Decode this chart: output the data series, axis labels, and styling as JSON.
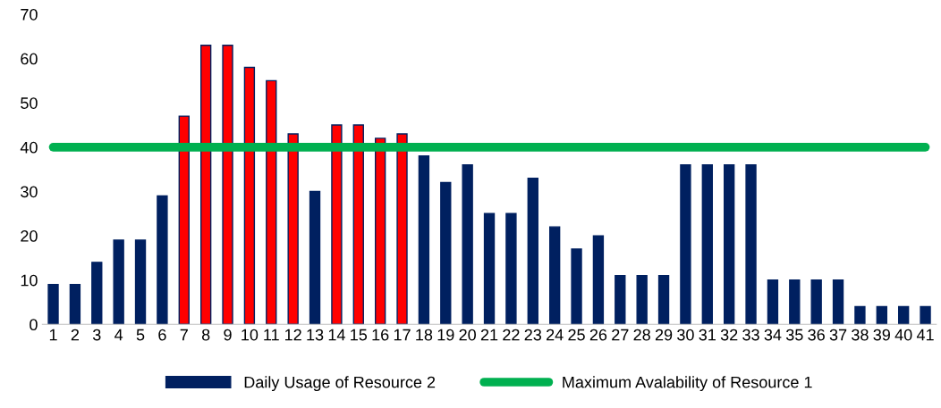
{
  "chart_data": {
    "type": "bar",
    "categories": [
      "1",
      "2",
      "3",
      "4",
      "5",
      "6",
      "7",
      "8",
      "9",
      "10",
      "11",
      "12",
      "13",
      "14",
      "15",
      "16",
      "17",
      "18",
      "19",
      "20",
      "21",
      "22",
      "23",
      "24",
      "25",
      "26",
      "27",
      "28",
      "29",
      "30",
      "31",
      "32",
      "33",
      "34",
      "35",
      "36",
      "37",
      "38",
      "39",
      "40",
      "41"
    ],
    "series": [
      {
        "name": "Daily Usage of Resource 2",
        "color": "#002060",
        "colors": [
          "#002060",
          "#002060",
          "#002060",
          "#002060",
          "#002060",
          "#002060",
          "#ff0000",
          "#ff0000",
          "#ff0000",
          "#ff0000",
          "#ff0000",
          "#ff0000",
          "#002060",
          "#ff0000",
          "#ff0000",
          "#ff0000",
          "#ff0000",
          "#002060",
          "#002060",
          "#002060",
          "#002060",
          "#002060",
          "#002060",
          "#002060",
          "#002060",
          "#002060",
          "#002060",
          "#002060",
          "#002060",
          "#002060",
          "#002060",
          "#002060",
          "#002060",
          "#002060",
          "#002060",
          "#002060",
          "#002060",
          "#002060",
          "#002060",
          "#002060",
          "#002060"
        ],
        "values": [
          9,
          9,
          14,
          19,
          19,
          29,
          47,
          63,
          63,
          58,
          55,
          43,
          30,
          45,
          45,
          42,
          43,
          38,
          32,
          36,
          25,
          25,
          33,
          22,
          17,
          20,
          11,
          11,
          11,
          36,
          36,
          36,
          36,
          10,
          10,
          10,
          10,
          4,
          4,
          4,
          4
        ]
      },
      {
        "name": "Maximum Avalability of Resource 1",
        "type": "line",
        "color": "#00b050",
        "values": [
          40,
          40,
          40,
          40,
          40,
          40,
          40,
          40,
          40,
          40,
          40,
          40,
          40,
          40,
          40,
          40,
          40,
          40,
          40,
          40,
          40,
          40,
          40,
          40,
          40,
          40,
          40,
          40,
          40,
          40,
          40,
          40,
          40,
          40,
          40,
          40,
          40,
          40,
          40,
          40,
          40
        ]
      }
    ],
    "ylim": [
      0,
      70
    ],
    "yticks": [
      0,
      10,
      20,
      30,
      40,
      50,
      60,
      70
    ],
    "grid": false,
    "legend": "bottom"
  }
}
